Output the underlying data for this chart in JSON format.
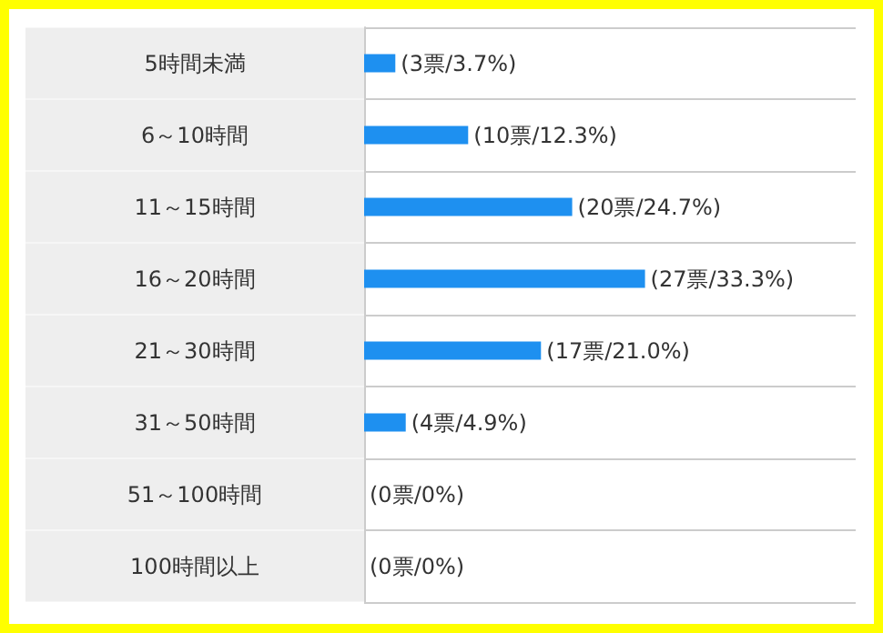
{
  "chart_data": {
    "type": "bar",
    "orientation": "horizontal",
    "categories": [
      "5時間未満",
      "6～10時間",
      "11～15時間",
      "16～20時間",
      "21～30時間",
      "31～50時間",
      "51～100時間",
      "100時間以上"
    ],
    "values": [
      3,
      10,
      20,
      27,
      17,
      4,
      0,
      0
    ],
    "value_labels": [
      "(3票/3.7%)",
      "(10票/12.3%)",
      "(20票/24.7%)",
      "(27票/33.3%)",
      "(17票/21.0%)",
      "(4票/4.9%)",
      "(0票/0%)",
      "(0票/0%)"
    ],
    "color": "#1e90f0",
    "grid": true
  }
}
